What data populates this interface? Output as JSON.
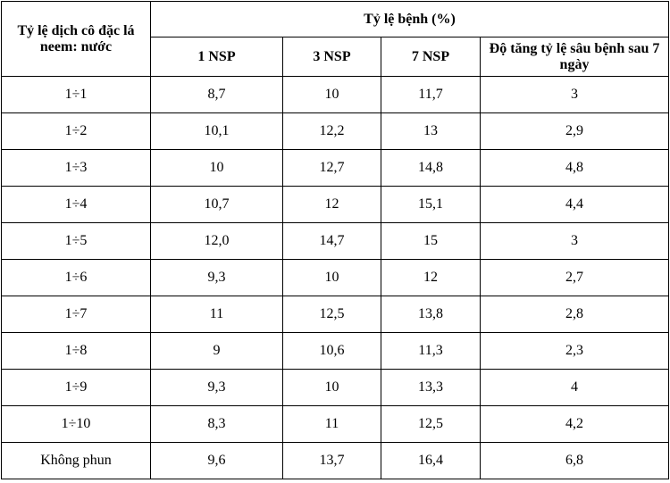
{
  "table": {
    "header": {
      "row_label": "Tỷ lệ dịch cô đặc lá neem: nước",
      "group_label": "Tỷ lệ bệnh (%)",
      "columns": [
        "1 NSP",
        "3 NSP",
        "7 NSP",
        "Độ tăng tỷ lệ sâu bệnh sau 7 ngày"
      ]
    },
    "rows": [
      [
        "1÷1",
        "8,7",
        "10",
        "11,7",
        "3"
      ],
      [
        "1÷2",
        "10,1",
        "12,2",
        "13",
        "2,9"
      ],
      [
        "1÷3",
        "10",
        "12,7",
        "14,8",
        "4,8"
      ],
      [
        "1÷4",
        "10,7",
        "12",
        "15,1",
        "4,4"
      ],
      [
        "1÷5",
        "12,0",
        "14,7",
        "15",
        "3"
      ],
      [
        "1÷6",
        "9,3",
        "10",
        "12",
        "2,7"
      ],
      [
        "1÷7",
        "11",
        "12,5",
        "13,8",
        "2,8"
      ],
      [
        "1÷8",
        "9",
        "10,6",
        "11,3",
        "2,3"
      ],
      [
        "1÷9",
        "9,3",
        "10",
        "13,3",
        "4"
      ],
      [
        "1÷10",
        "8,3",
        "11",
        "12,5",
        "4,2"
      ],
      [
        "Không phun",
        "9,6",
        "13,7",
        "16,4",
        "6,8"
      ]
    ]
  }
}
